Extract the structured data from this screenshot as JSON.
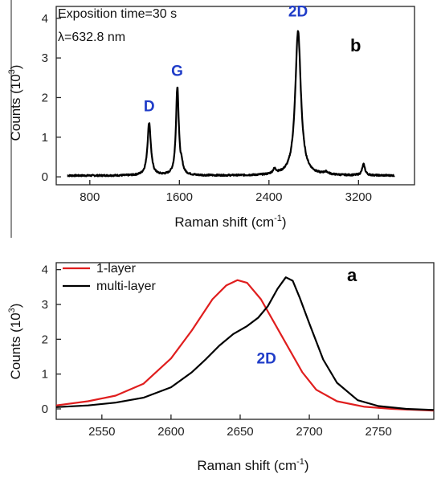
{
  "chart_data": [
    {
      "panel": "b",
      "type": "line",
      "panel_label": "b",
      "xlabel": "Raman shift (cm",
      "xlabel_sup": "-1",
      "xlabel_close": ")",
      "ylabel": "Counts (10",
      "ylabel_sup": "3",
      "ylabel_close": ")",
      "xlim": [
        500,
        3700
      ],
      "ylim": [
        -0.2,
        4.3
      ],
      "xticks": [
        800,
        1600,
        2400,
        3200
      ],
      "yticks": [
        0,
        1,
        2,
        3,
        4
      ],
      "annotations": [
        "Exposition time=30 s",
        "λ=632.8 nm"
      ],
      "peak_labels": [
        {
          "text": "D",
          "x": 1330,
          "y": 1.65
        },
        {
          "text": "G",
          "x": 1580,
          "y": 2.55
        },
        {
          "text": "2D",
          "x": 2660,
          "y": 4.05
        }
      ],
      "series": [
        {
          "color": "#000000",
          "peaks": [
            {
              "center": 1330,
              "height": 1.33,
              "width": 18
            },
            {
              "center": 1582,
              "height": 2.22,
              "width": 15
            },
            {
              "center": 1620,
              "height": 0.18,
              "width": 15
            },
            {
              "center": 2450,
              "height": 0.12,
              "width": 18
            },
            {
              "center": 2660,
              "height": 3.65,
              "width": 30
            },
            {
              "center": 2910,
              "height": 0.06,
              "width": 25
            },
            {
              "center": 3245,
              "height": 0.28,
              "width": 15
            }
          ],
          "x_range": [
            600,
            3520
          ],
          "baseline": 0.03
        }
      ]
    },
    {
      "panel": "a",
      "type": "line",
      "panel_label": "a",
      "xlabel": "Raman shift (cm",
      "xlabel_sup": "-1",
      "xlabel_close": ")",
      "ylabel": "Counts (10",
      "ylabel_sup": "3",
      "ylabel_close": ")",
      "xlim": [
        2517,
        2790
      ],
      "ylim": [
        -0.3,
        4.2
      ],
      "xticks": [
        2550,
        2600,
        2650,
        2700,
        2750
      ],
      "yticks": [
        0,
        1,
        2,
        3,
        4
      ],
      "peak_labels": [
        {
          "text": "2D",
          "x": 2669,
          "y": 1.3
        }
      ],
      "legend": {
        "position": "top-left"
      },
      "series": [
        {
          "name": "1-layer",
          "color": "#e01e1e",
          "x": [
            2517,
            2540,
            2560,
            2580,
            2600,
            2615,
            2630,
            2640,
            2648,
            2655,
            2665,
            2675,
            2685,
            2695,
            2705,
            2720,
            2740,
            2760,
            2790
          ],
          "y": [
            0.1,
            0.22,
            0.38,
            0.72,
            1.45,
            2.25,
            3.15,
            3.55,
            3.7,
            3.62,
            3.15,
            2.45,
            1.75,
            1.05,
            0.55,
            0.22,
            0.06,
            0.0,
            -0.05
          ]
        },
        {
          "name": "multi-layer",
          "color": "#000000",
          "x": [
            2517,
            2540,
            2560,
            2580,
            2600,
            2615,
            2625,
            2635,
            2645,
            2655,
            2663,
            2670,
            2677,
            2683,
            2688,
            2693,
            2700,
            2710,
            2720,
            2735,
            2750,
            2770,
            2790
          ],
          "y": [
            0.05,
            0.1,
            0.18,
            0.32,
            0.62,
            1.05,
            1.42,
            1.82,
            2.15,
            2.38,
            2.62,
            2.95,
            3.45,
            3.78,
            3.68,
            3.2,
            2.45,
            1.42,
            0.75,
            0.25,
            0.08,
            0.0,
            -0.03
          ]
        }
      ]
    }
  ]
}
